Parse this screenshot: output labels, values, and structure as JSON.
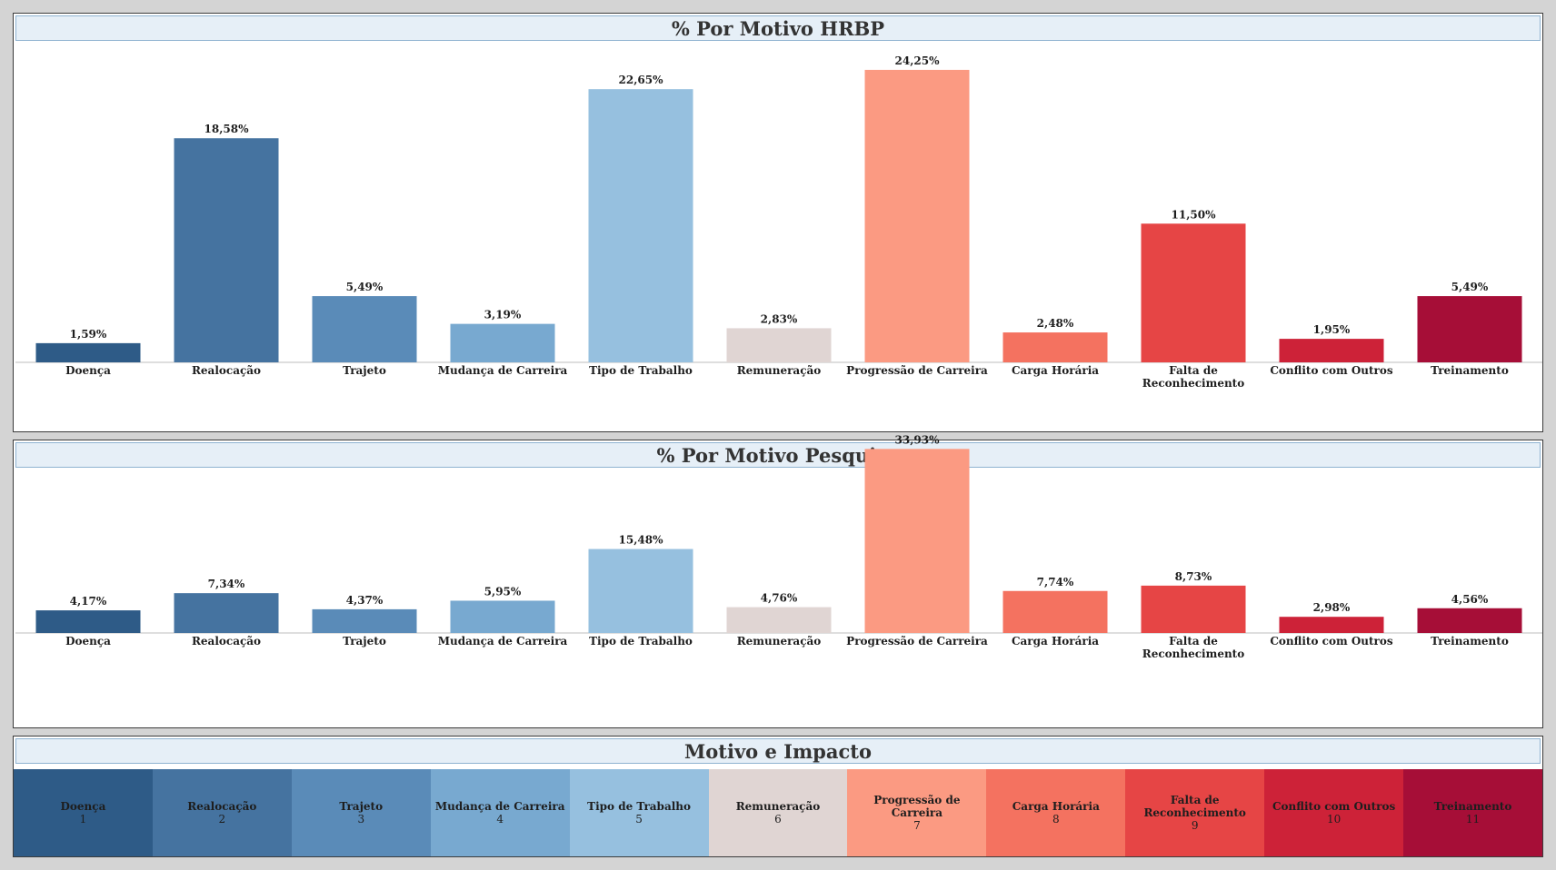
{
  "chart_data": [
    {
      "type": "bar",
      "title": "% Por Motivo HRBP",
      "categories": [
        "Doença",
        "Realocação",
        "Trajeto",
        "Mudança de Carreira",
        "Tipo de Trabalho",
        "Remuneração",
        "Progressão de Carreira",
        "Carga Horária",
        "Falta de\nReconhecimento",
        "Conflito com Outros",
        "Treinamento"
      ],
      "values": [
        1.59,
        18.58,
        5.49,
        3.19,
        22.65,
        2.83,
        24.25,
        2.48,
        11.5,
        1.95,
        5.49
      ],
      "labels": [
        "1,59%",
        "18,58%",
        "5,49%",
        "3,19%",
        "22,65%",
        "2,83%",
        "24,25%",
        "2,48%",
        "11,50%",
        "1,95%",
        "5,49%"
      ],
      "ylim": [
        0,
        25.6
      ]
    },
    {
      "type": "bar",
      "title": "% Por Motivo Pesquisa",
      "categories": [
        "Doença",
        "Realocação",
        "Trajeto",
        "Mudança de Carreira",
        "Tipo de Trabalho",
        "Remuneração",
        "Progressão de Carreira",
        "Carga Horária",
        "Falta de\nReconhecimento",
        "Conflito com Outros",
        "Treinamento"
      ],
      "values": [
        4.17,
        7.34,
        4.37,
        5.95,
        15.48,
        4.76,
        33.93,
        7.74,
        8.73,
        2.98,
        4.56
      ],
      "labels": [
        "4,17%",
        "7,34%",
        "4,37%",
        "5,95%",
        "15,48%",
        "4,76%",
        "33,93%",
        "7,74%",
        "8,73%",
        "2,98%",
        "4,56%"
      ],
      "ylim": [
        0,
        36.5
      ]
    }
  ],
  "colors": [
    "#2e5b87",
    "#4573a0",
    "#5a8bb8",
    "#78a9d0",
    "#96c0df",
    "#e0d5d3",
    "#fb9a82",
    "#f47260",
    "#e64545",
    "#cd2238",
    "#a60e37"
  ],
  "legend": {
    "title": "Motivo e Impacto",
    "items": [
      {
        "label": "Doença",
        "num": "1"
      },
      {
        "label": "Realocação",
        "num": "2"
      },
      {
        "label": "Trajeto",
        "num": "3"
      },
      {
        "label": "Mudança de Carreira",
        "num": "4"
      },
      {
        "label": "Tipo de Trabalho",
        "num": "5"
      },
      {
        "label": "Remuneração",
        "num": "6"
      },
      {
        "label": "Progressão de Carreira",
        "num": "7"
      },
      {
        "label": "Carga Horária",
        "num": "8"
      },
      {
        "label": "Falta de\nReconhecimento",
        "num": "9"
      },
      {
        "label": "Conflito com Outros",
        "num": "10"
      },
      {
        "label": "Treinamento",
        "num": "11"
      }
    ]
  }
}
